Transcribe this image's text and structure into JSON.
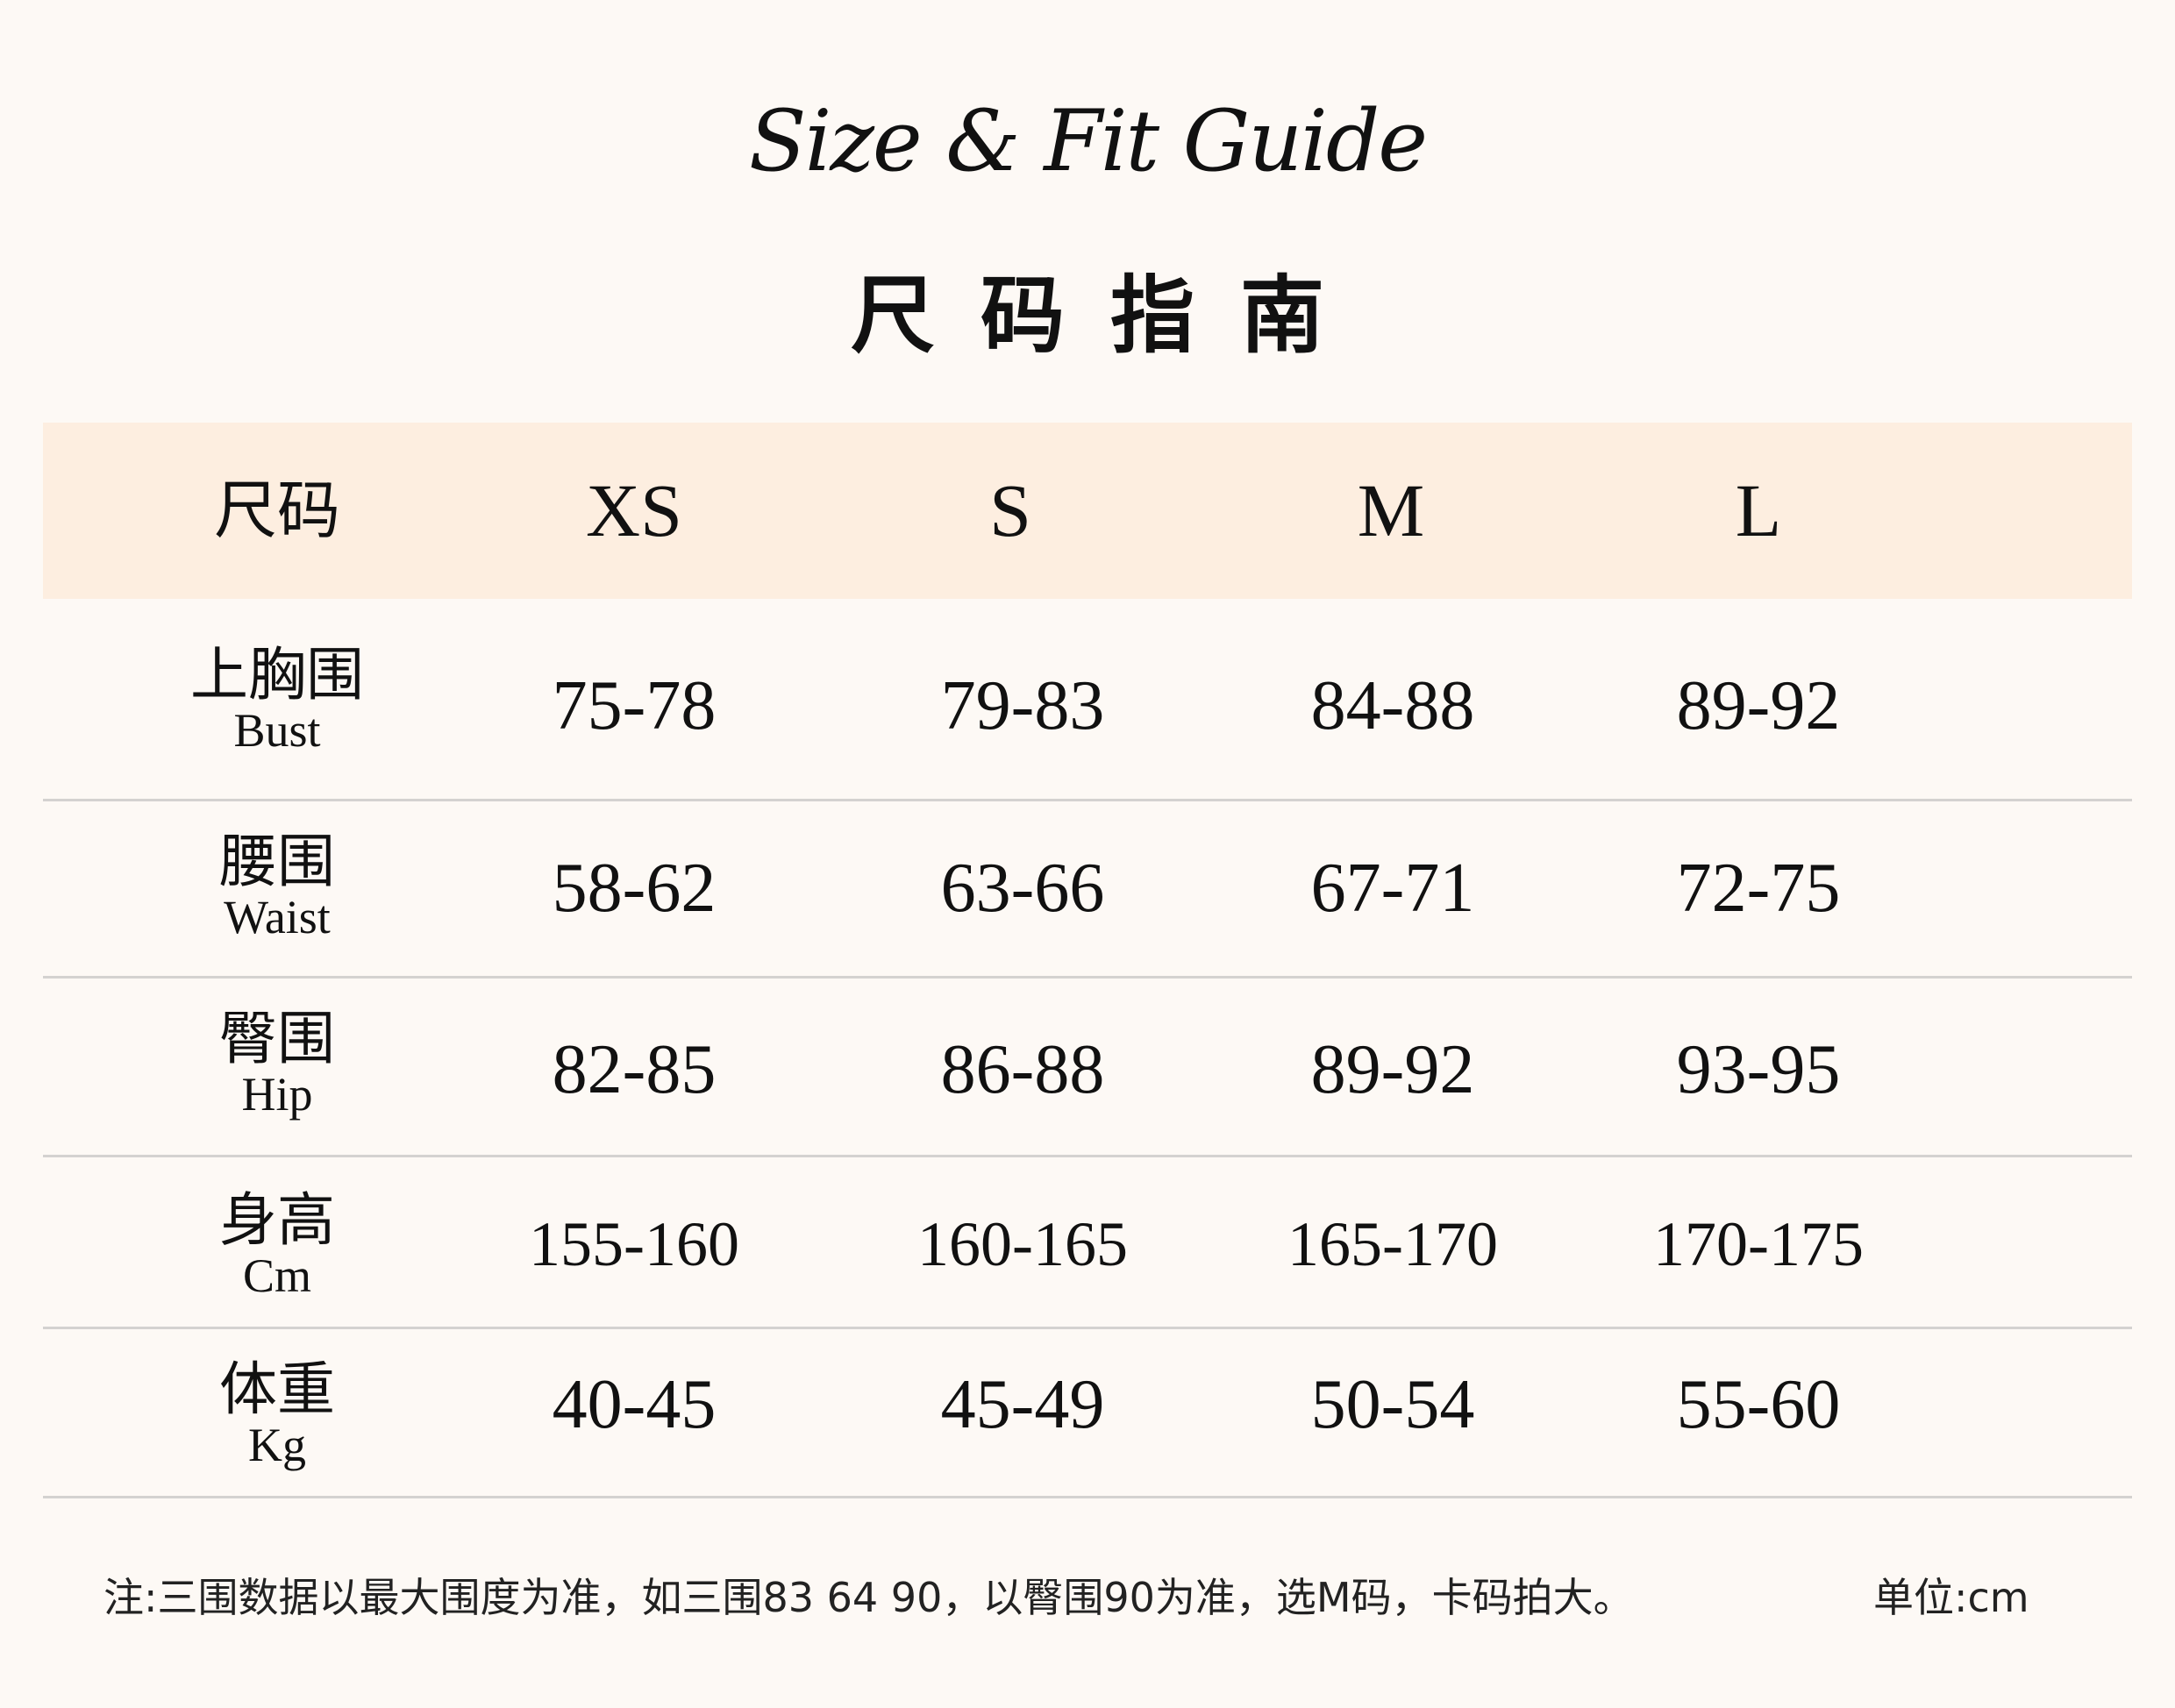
{
  "title_script": "Size & Fit Guide",
  "title_cn": "尺码指南",
  "table": {
    "header": {
      "label": "尺码",
      "sizes": [
        "XS",
        "S",
        "M",
        "L"
      ]
    },
    "rows": [
      {
        "cn": "上胸围",
        "en": "Bust",
        "values": [
          "75-78",
          "79-83",
          "84-88",
          "89-92"
        ]
      },
      {
        "cn": "腰围",
        "en": "Waist",
        "values": [
          "58-62",
          "63-66",
          "67-71",
          "72-75"
        ]
      },
      {
        "cn": "臀围",
        "en": "Hip",
        "values": [
          "82-85",
          "86-88",
          "89-92",
          "93-95"
        ]
      },
      {
        "cn": "身高",
        "en": "Cm",
        "values": [
          "155-160",
          "160-165",
          "165-170",
          "170-175"
        ]
      },
      {
        "cn": "体重",
        "en": "Kg",
        "values": [
          "40-45",
          "45-49",
          "50-54",
          "55-60"
        ]
      }
    ]
  },
  "footer": {
    "note": "注:三围数据以最大围度为准，如三围83 64 90，以臀围90为准，选M码，卡码拍大。",
    "unit": "单位:cm"
  },
  "colors": {
    "background": "#fdf9f5",
    "header_band": "#fdeee0",
    "divider": "#d4d2d0"
  }
}
